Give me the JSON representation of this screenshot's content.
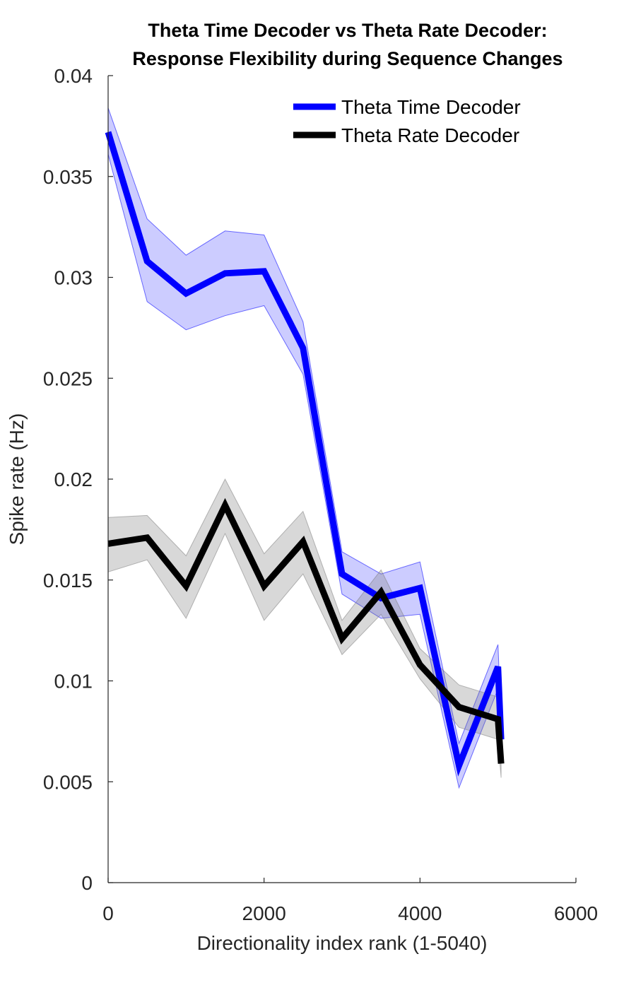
{
  "chart_data": {
    "type": "line",
    "title": [
      "Theta Time Decoder vs Theta Rate Decoder:",
      "Response Flexibility during Sequence Changes"
    ],
    "xlabel": "Directionality index rank (1-5040)",
    "ylabel": "Spike rate (Hz)",
    "xlim": [
      0,
      6000
    ],
    "ylim": [
      0,
      0.04
    ],
    "x_ticks": [
      0,
      2000,
      4000,
      6000
    ],
    "x_tick_labels": [
      "0",
      "2000",
      "4000",
      "6000"
    ],
    "y_ticks": [
      0,
      0.005,
      0.01,
      0.015,
      0.02,
      0.025,
      0.03,
      0.035,
      0.04
    ],
    "y_tick_labels": [
      "0",
      "0.005",
      "0.01",
      "0.015",
      "0.02",
      "0.025",
      "0.03",
      "0.035",
      "0.04"
    ],
    "grid": false,
    "legend_position": "top-right",
    "x": [
      0,
      500,
      1000,
      1500,
      2000,
      2500,
      3000,
      3500,
      4000,
      4500,
      5000,
      5040
    ],
    "series": [
      {
        "name": "Theta Time Decoder",
        "color": "#0000ff",
        "band_color": "#0000ff",
        "values": [
          0.0372,
          0.0308,
          0.0292,
          0.0302,
          0.0303,
          0.0265,
          0.0153,
          0.0141,
          0.0146,
          0.0058,
          0.0107,
          0.0071
        ],
        "lower": [
          0.0361,
          0.0288,
          0.0274,
          0.0281,
          0.0286,
          0.0252,
          0.0143,
          0.0131,
          0.0133,
          0.0047,
          0.0096,
          0.0063
        ],
        "upper": [
          0.0384,
          0.0329,
          0.0311,
          0.0323,
          0.0321,
          0.0278,
          0.0164,
          0.0153,
          0.0159,
          0.0069,
          0.0118,
          0.0079
        ]
      },
      {
        "name": "Theta Rate Decoder",
        "color": "#000000",
        "band_color": "#7f7f7f",
        "values": [
          0.0168,
          0.0171,
          0.0147,
          0.0187,
          0.0147,
          0.0169,
          0.0121,
          0.0144,
          0.0108,
          0.0087,
          0.0081,
          0.0059
        ],
        "lower": [
          0.0154,
          0.016,
          0.0131,
          0.0173,
          0.013,
          0.0153,
          0.0113,
          0.0133,
          0.0101,
          0.0077,
          0.0071,
          0.0052
        ],
        "upper": [
          0.0181,
          0.0182,
          0.0162,
          0.02,
          0.0163,
          0.0184,
          0.013,
          0.0155,
          0.0116,
          0.0098,
          0.0092,
          0.0066
        ]
      }
    ]
  }
}
